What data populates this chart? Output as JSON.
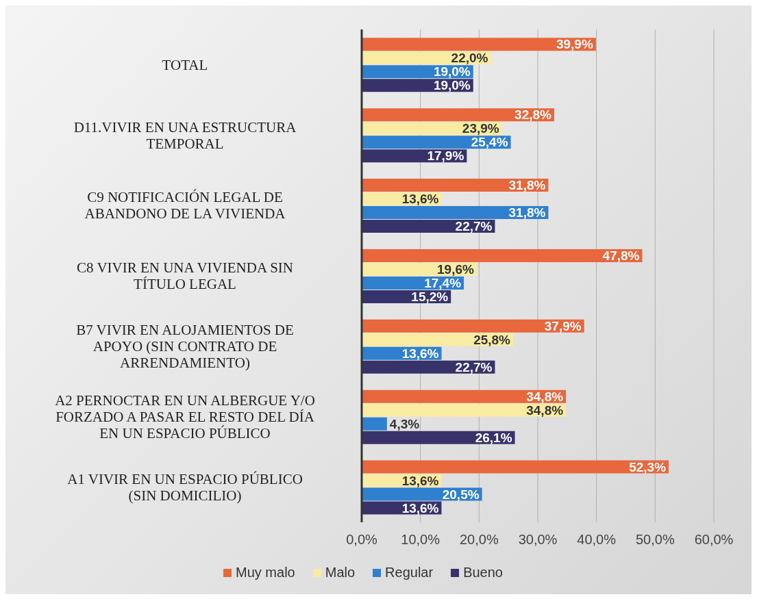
{
  "chart_data": {
    "type": "bar",
    "orientation": "horizontal",
    "categories": [
      "TOTAL",
      "D11.VIVIR EN UNA ESTRUCTURA TEMPORAL",
      "C9 NOTIFICACIÓN LEGAL DE ABANDONO DE LA VIVIENDA",
      "C8 VIVIR EN UNA VIVIENDA SIN TÍTULO LEGAL",
      "B7 VIVIR EN ALOJAMIENTOS DE APOYO (SIN CONTRATO DE ARRENDAMIENTO)",
      "A2 PERNOCTAR EN UN ALBERGUE Y/O FORZADO A PASAR EL RESTO DEL DÍA EN UN ESPACIO PÚBLICO",
      "A1 VIVIR EN UN ESPACIO PÚBLICO (SIN DOMICILIO)"
    ],
    "series": [
      {
        "name": "Muy malo",
        "color": "#e8673c",
        "values": [
          39.9,
          32.8,
          31.8,
          47.8,
          37.9,
          34.8,
          52.3
        ],
        "value_labels": [
          "39,9%",
          "32,8%",
          "31,8%",
          "47,8%",
          "37,9%",
          "34,8%",
          "52,3%"
        ]
      },
      {
        "name": "Malo",
        "color": "#f9eba2",
        "values": [
          22.0,
          23.9,
          13.6,
          19.6,
          25.8,
          34.8,
          13.6
        ],
        "value_labels": [
          "22,0%",
          "23,9%",
          "13,6%",
          "19,6%",
          "25,8%",
          "34,8%",
          "13,6%"
        ]
      },
      {
        "name": "Regular",
        "color": "#2f80cf",
        "values": [
          19.0,
          25.4,
          31.8,
          17.4,
          13.6,
          4.3,
          20.5
        ],
        "value_labels": [
          "19,0%",
          "25,4%",
          "31,8%",
          "17,4%",
          "13,6%",
          "4,3%",
          "20,5%"
        ]
      },
      {
        "name": "Bueno",
        "color": "#37336a",
        "values": [
          19.0,
          17.9,
          22.7,
          15.2,
          22.7,
          26.1,
          13.6
        ],
        "value_labels": [
          "19,0%",
          "17,9%",
          "22,7%",
          "15,2%",
          "22,7%",
          "26,1%",
          "13,6%"
        ]
      }
    ],
    "xlim": [
      0,
      60
    ],
    "xticks": [
      {
        "value": 0,
        "label": "0,0%"
      },
      {
        "value": 10,
        "label": "10,0%"
      },
      {
        "value": 20,
        "label": "20,0%"
      },
      {
        "value": 30,
        "label": "30,0%"
      },
      {
        "value": 40,
        "label": "40,0%"
      },
      {
        "value": 50,
        "label": "50,0%"
      },
      {
        "value": 60,
        "label": "60,0%"
      }
    ],
    "grid": "x",
    "legend": "bottom"
  }
}
